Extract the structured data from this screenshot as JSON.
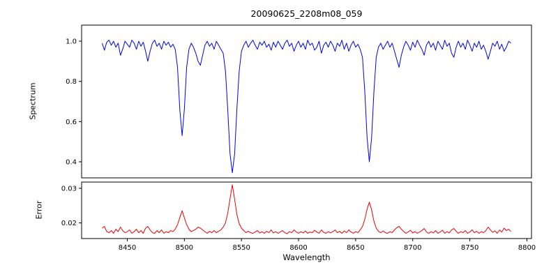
{
  "chart_data": {
    "type": "line",
    "title": "20090625_2208m08_059",
    "xlabel": "Wavelength",
    "grid": false,
    "legend": "none",
    "xlim": [
      8410,
      8804
    ],
    "x_start": 8428,
    "x_step": 2,
    "xtick_values": [
      8450,
      8500,
      8550,
      8600,
      8650,
      8700,
      8750,
      8800
    ],
    "xtick_labels": [
      "8450",
      "8500",
      "8550",
      "8600",
      "8650",
      "8700",
      "8750",
      "8800"
    ],
    "absorption_lines": {
      "centers": [
        8498,
        8542,
        8662
      ],
      "minima": [
        0.53,
        0.345,
        0.4
      ]
    },
    "panels": [
      {
        "name": "spectrum",
        "ylabel": "Spectrum",
        "color": "#0000ee",
        "ylim": [
          0.32,
          1.08
        ],
        "ytick_values": [
          0.4,
          0.6,
          0.8,
          1.0
        ],
        "ytick_labels": [
          "0.4",
          "0.6",
          "0.8",
          "1.0"
        ],
        "values": [
          0.99,
          0.955,
          0.995,
          1.005,
          0.98,
          1.0,
          0.97,
          0.99,
          0.93,
          0.96,
          1.0,
          0.985,
          0.97,
          1.005,
          0.99,
          0.96,
          1.0,
          0.975,
          0.995,
          0.95,
          0.9,
          0.95,
          0.99,
          1.005,
          0.975,
          0.99,
          0.96,
          1.0,
          0.98,
          0.995,
          0.97,
          0.985,
          0.96,
          0.87,
          0.66,
          0.53,
          0.66,
          0.87,
          0.96,
          0.99,
          0.97,
          0.94,
          0.9,
          0.88,
          0.93,
          0.98,
          1.0,
          0.975,
          0.99,
          0.96,
          1.0,
          0.98,
          0.96,
          0.94,
          0.85,
          0.66,
          0.44,
          0.345,
          0.44,
          0.66,
          0.85,
          0.95,
          0.98,
          1.0,
          0.97,
          0.99,
          1.005,
          0.98,
          0.96,
          0.995,
          0.98,
          1.0,
          0.97,
          0.985,
          0.955,
          0.995,
          0.97,
          1.0,
          0.98,
          0.96,
          0.99,
          1.005,
          0.975,
          0.99,
          0.95,
          0.98,
          1.0,
          0.97,
          0.99,
          0.96,
          1.005,
          0.98,
          0.99,
          0.955,
          0.97,
          1.0,
          0.94,
          0.98,
          0.995,
          0.97,
          1.0,
          0.98,
          0.95,
          0.99,
          0.975,
          1.005,
          0.96,
          0.99,
          0.95,
          0.98,
          1.0,
          0.97,
          0.985,
          0.96,
          0.92,
          0.75,
          0.52,
          0.4,
          0.52,
          0.75,
          0.92,
          0.97,
          0.99,
          0.96,
          0.98,
          1.0,
          0.97,
          0.99,
          0.95,
          0.91,
          0.87,
          0.93,
          0.97,
          1.0,
          0.98,
          0.955,
          0.995,
          0.97,
          1.005,
          0.98,
          0.96,
          0.93,
          0.98,
          1.0,
          0.97,
          0.99,
          0.955,
          1.0,
          0.98,
          0.96,
          1.005,
          0.975,
          0.99,
          0.94,
          0.92,
          0.97,
          1.0,
          0.97,
          0.99,
          0.96,
          1.005,
          0.98,
          0.95,
          0.99,
          0.97,
          1.0,
          0.96,
          0.98,
          0.95,
          0.91,
          0.95,
          0.99,
          0.975,
          1.0,
          0.96,
          0.985,
          0.95,
          0.97,
          1.0,
          0.99
        ]
      },
      {
        "name": "error",
        "ylabel": "Error",
        "color": "#ee0000",
        "ylim": [
          0.0155,
          0.0318
        ],
        "ytick_values": [
          0.02,
          0.03
        ],
        "ytick_labels": [
          "0.02",
          "0.03"
        ],
        "values": [
          0.0185,
          0.019,
          0.0175,
          0.0172,
          0.0178,
          0.017,
          0.0182,
          0.0175,
          0.0188,
          0.0178,
          0.0172,
          0.0175,
          0.018,
          0.017,
          0.0175,
          0.0182,
          0.0172,
          0.0178,
          0.017,
          0.0185,
          0.019,
          0.018,
          0.0172,
          0.017,
          0.0178,
          0.0172,
          0.018,
          0.017,
          0.0175,
          0.0172,
          0.0178,
          0.0175,
          0.0182,
          0.0195,
          0.0215,
          0.0235,
          0.0215,
          0.0195,
          0.0182,
          0.0175,
          0.0178,
          0.0182,
          0.0188,
          0.0185,
          0.018,
          0.0175,
          0.017,
          0.0176,
          0.0172,
          0.0178,
          0.0172,
          0.0176,
          0.018,
          0.0188,
          0.02,
          0.0228,
          0.027,
          0.031,
          0.0268,
          0.0225,
          0.0198,
          0.0185,
          0.0178,
          0.0172,
          0.0176,
          0.0172,
          0.017,
          0.0174,
          0.0178,
          0.0171,
          0.0175,
          0.017,
          0.0176,
          0.0172,
          0.018,
          0.0171,
          0.0175,
          0.017,
          0.0174,
          0.0178,
          0.0172,
          0.0169,
          0.0175,
          0.0172,
          0.018,
          0.0174,
          0.017,
          0.0175,
          0.0171,
          0.0177,
          0.017,
          0.0174,
          0.0172,
          0.0179,
          0.0174,
          0.017,
          0.018,
          0.0173,
          0.017,
          0.0175,
          0.0171,
          0.0175,
          0.018,
          0.0172,
          0.0176,
          0.017,
          0.0177,
          0.0172,
          0.018,
          0.0174,
          0.017,
          0.0175,
          0.0172,
          0.018,
          0.019,
          0.021,
          0.024,
          0.026,
          0.0238,
          0.0205,
          0.0185,
          0.0176,
          0.0172,
          0.0177,
          0.0172,
          0.017,
          0.0175,
          0.0172,
          0.018,
          0.0186,
          0.019,
          0.0182,
          0.0176,
          0.017,
          0.0174,
          0.0179,
          0.0171,
          0.0175,
          0.017,
          0.0174,
          0.0178,
          0.0184,
          0.0174,
          0.017,
          0.0175,
          0.0171,
          0.0178,
          0.017,
          0.0174,
          0.0179,
          0.017,
          0.0175,
          0.0171,
          0.018,
          0.0184,
          0.0176,
          0.017,
          0.0175,
          0.0172,
          0.0178,
          0.017,
          0.0174,
          0.018,
          0.0172,
          0.0176,
          0.017,
          0.0175,
          0.0172,
          0.0178,
          0.0188,
          0.018,
          0.0173,
          0.0177,
          0.017,
          0.018,
          0.0174,
          0.0185,
          0.0178,
          0.0182,
          0.0175
        ]
      }
    ]
  }
}
